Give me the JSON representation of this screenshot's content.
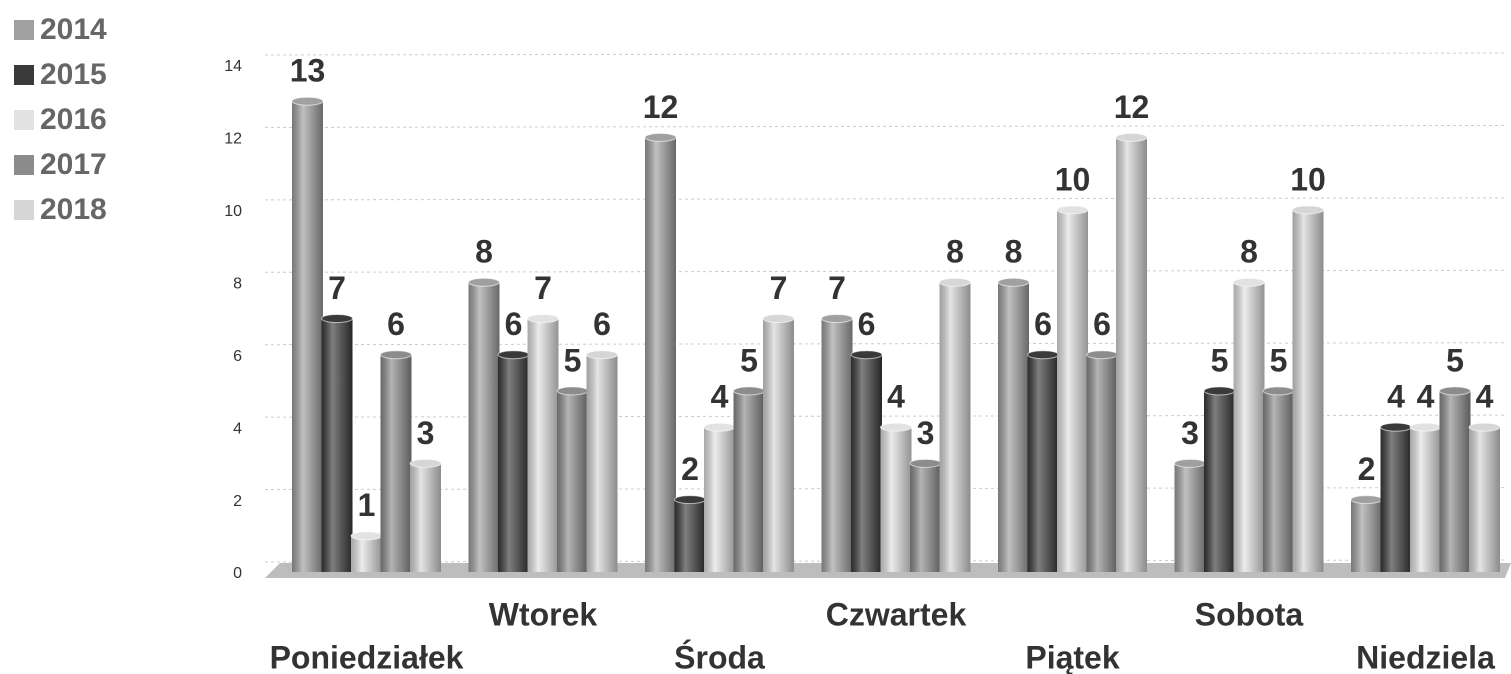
{
  "chart_data": {
    "type": "bar",
    "categories": [
      "Poniedziałek",
      "Wtorek",
      "Środa",
      "Czwartek",
      "Piątek",
      "Sobota",
      "Niedziela"
    ],
    "series": [
      {
        "name": "2014",
        "color": "#a0a0a0",
        "values": [
          13,
          8,
          12,
          7,
          8,
          3,
          2
        ]
      },
      {
        "name": "2015",
        "color": "#3a3a3a",
        "values": [
          7,
          6,
          2,
          6,
          6,
          5,
          4
        ]
      },
      {
        "name": "2016",
        "color": "#e2e2e2",
        "values": [
          1,
          7,
          4,
          4,
          10,
          8,
          4
        ]
      },
      {
        "name": "2017",
        "color": "#8c8c8c",
        "values": [
          6,
          5,
          5,
          3,
          6,
          5,
          5
        ]
      },
      {
        "name": "2018",
        "color": "#d6d6d6",
        "values": [
          3,
          6,
          7,
          8,
          12,
          10,
          4
        ]
      }
    ],
    "ylim": [
      0,
      14
    ],
    "yticks": [
      0,
      2,
      4,
      6,
      8,
      10,
      12,
      14
    ],
    "grid": true,
    "legend": "top-left"
  }
}
